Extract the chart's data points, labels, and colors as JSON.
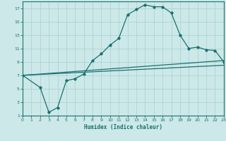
{
  "xlabel": "Humidex (Indice chaleur)",
  "xlim": [
    0,
    23
  ],
  "ylim": [
    1,
    18
  ],
  "xticks": [
    0,
    1,
    2,
    3,
    4,
    5,
    6,
    7,
    8,
    9,
    10,
    11,
    12,
    13,
    14,
    15,
    16,
    17,
    18,
    19,
    20,
    21,
    22,
    23
  ],
  "yticks": [
    1,
    3,
    5,
    7,
    9,
    11,
    13,
    15,
    17
  ],
  "bg_color": "#cce8e8",
  "grid_color": "#a8d0d0",
  "line_color": "#1a7070",
  "curve_x": [
    0,
    2,
    3,
    4,
    5,
    6,
    7,
    8,
    9,
    10,
    11,
    12,
    13,
    14,
    15,
    16,
    17,
    18,
    19,
    20,
    21,
    22,
    23
  ],
  "curve_y": [
    7,
    5.2,
    1.5,
    2.2,
    6.2,
    6.5,
    7.2,
    9.2,
    10.2,
    11.5,
    12.5,
    16.0,
    16.8,
    17.5,
    17.2,
    17.2,
    16.3,
    13.0,
    11.0,
    11.2,
    10.8,
    10.7,
    9.0
  ],
  "line1_x": [
    0,
    23
  ],
  "line1_y": [
    7.0,
    8.5
  ],
  "line2_x": [
    0,
    23
  ],
  "line2_y": [
    7.0,
    9.2
  ]
}
